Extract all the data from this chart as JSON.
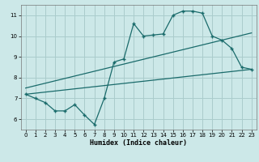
{
  "title": "",
  "xlabel": "Humidex (Indice chaleur)",
  "bg_color": "#cce8e8",
  "grid_color": "#aacccc",
  "line_color": "#1a6b6b",
  "xlim": [
    -0.5,
    23.5
  ],
  "ylim": [
    5.5,
    11.5
  ],
  "xticks": [
    0,
    1,
    2,
    3,
    4,
    5,
    6,
    7,
    8,
    9,
    10,
    11,
    12,
    13,
    14,
    15,
    16,
    17,
    18,
    19,
    20,
    21,
    22,
    23
  ],
  "yticks": [
    6,
    7,
    8,
    9,
    10,
    11
  ],
  "main_x": [
    0,
    1,
    2,
    3,
    4,
    5,
    6,
    7,
    8,
    9,
    10,
    11,
    12,
    13,
    14,
    15,
    16,
    17,
    18,
    19,
    20,
    21,
    22,
    23
  ],
  "main_y": [
    7.2,
    7.0,
    6.8,
    6.4,
    6.4,
    6.7,
    6.2,
    5.75,
    7.0,
    8.75,
    8.9,
    10.6,
    10.0,
    10.05,
    10.1,
    11.0,
    11.2,
    11.2,
    11.1,
    10.0,
    9.8,
    9.4,
    8.5,
    8.4
  ],
  "line1_x": [
    0,
    23
  ],
  "line1_y": [
    7.2,
    8.4
  ],
  "line2_x": [
    0,
    23
  ],
  "line2_y": [
    7.5,
    10.15
  ]
}
